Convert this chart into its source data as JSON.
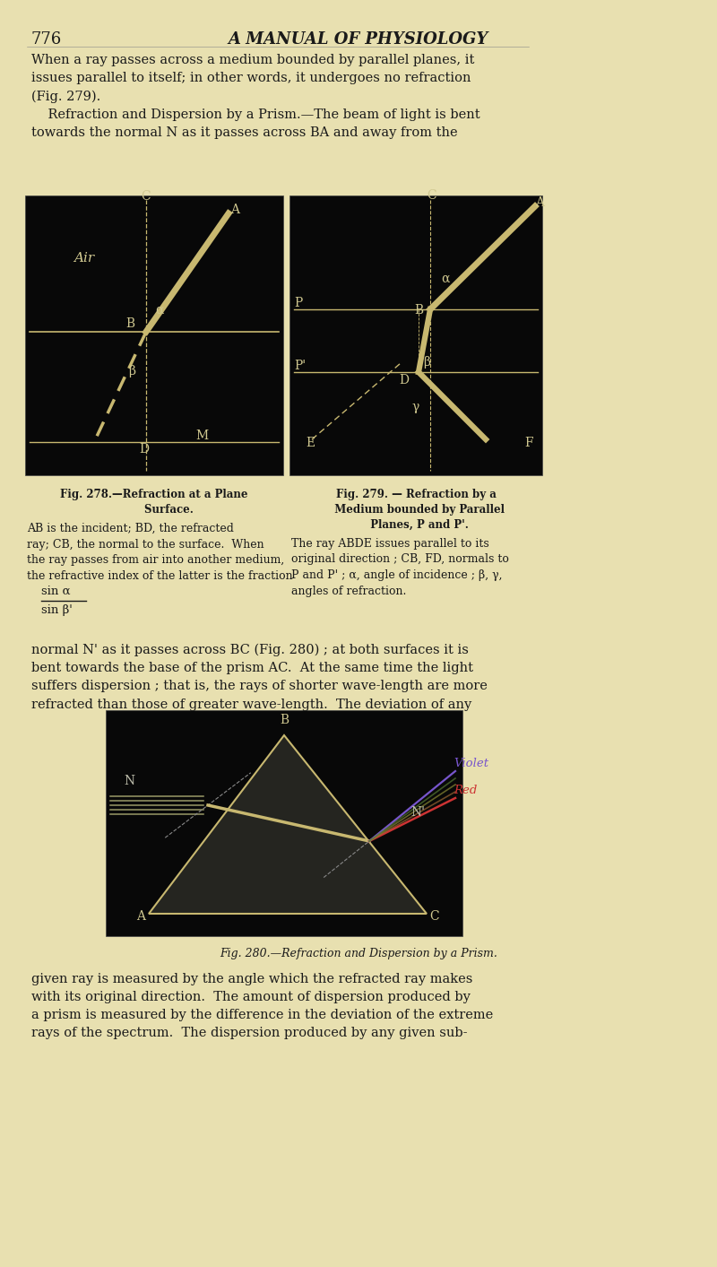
{
  "page_bg": "#e8e0b0",
  "page_number": "776",
  "page_title": "A MANUAL OF PHYSIOLOGY",
  "fig278_caption_title": "Fig. 278.—Refraction at a Plane\n        Surface.",
  "fig279_caption_title": "Fig. 279. — Refraction by a\n  Medium bounded by Parallel\n  Planes, P and P'.",
  "fig280_caption": "Fig. 280.—Refraction and Dispersion by a Prism.",
  "fig_bg": "#080808",
  "fig_line_color": "#c8b870",
  "fig_text_color": "#d0c890"
}
